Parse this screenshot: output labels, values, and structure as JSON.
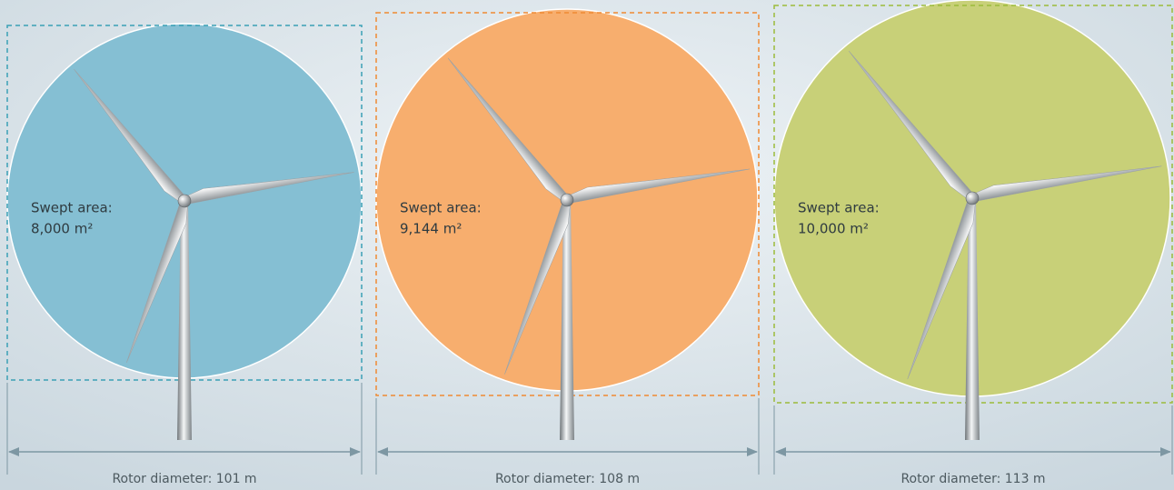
{
  "turbines": [
    {
      "swept_area_label": "Swept area:",
      "swept_area": "8,000 m²",
      "rotor_diameter": "Rotor diameter: 101 m"
    },
    {
      "swept_area_label": "Swept area:",
      "swept_area": "9,144 m²",
      "rotor_diameter": "Rotor diameter: 108 m"
    },
    {
      "swept_area_label": "Swept area:",
      "swept_area": "10,000 m²",
      "rotor_diameter": "Rotor diameter: 113 m"
    }
  ]
}
